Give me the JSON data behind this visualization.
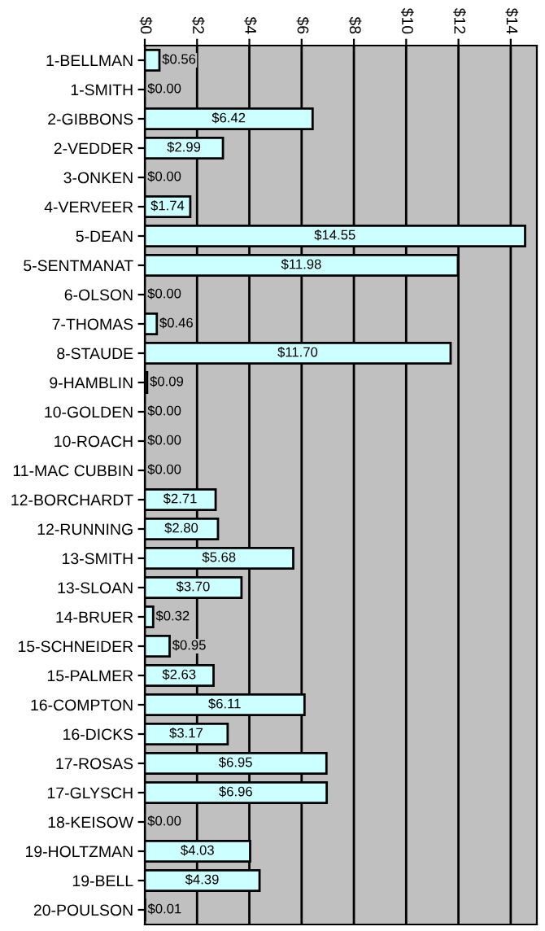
{
  "chart_data": {
    "type": "bar",
    "orientation": "horizontal",
    "categories": [
      "1-BELLMAN",
      "1-SMITH",
      "2-GIBBONS",
      "2-VEDDER",
      "3-ONKEN",
      "4-VERVEER",
      "5-DEAN",
      "5-SENTMANAT",
      "6-OLSON",
      "7-THOMAS",
      "8-STAUDE",
      "9-HAMBLIN",
      "10-GOLDEN",
      "10-ROACH",
      "11-MAC CUBBIN",
      "12-BORCHARDT",
      "12-RUNNING",
      "13-SMITH",
      "13-SLOAN",
      "14-BRUER",
      "15-SCHNEIDER",
      "15-PALMER",
      "16-COMPTON",
      "16-DICKS",
      "17-ROSAS",
      "17-GLYSCH",
      "18-KEISOW",
      "19-HOLTZMAN",
      "19-BELL",
      "20-POULSON"
    ],
    "values": [
      0.56,
      0.0,
      6.42,
      2.99,
      0.0,
      1.74,
      14.55,
      11.98,
      0.0,
      0.46,
      11.7,
      0.09,
      0.0,
      0.0,
      0.0,
      2.71,
      2.8,
      5.68,
      3.7,
      0.32,
      0.95,
      2.63,
      6.11,
      3.17,
      6.95,
      6.96,
      0.0,
      4.03,
      4.39,
      0.01
    ],
    "value_labels": [
      "$0.56",
      "$0.00",
      "$6.42",
      "$2.99",
      "$0.00",
      "$1.74",
      "$14.55",
      "$11.98",
      "$0.00",
      "$0.46",
      "$11.70",
      "$0.09",
      "$0.00",
      "$0.00",
      "$0.00",
      "$2.71",
      "$2.80",
      "$5.68",
      "$3.70",
      "$0.32",
      "$0.95",
      "$2.63",
      "$6.11",
      "$3.17",
      "$6.95",
      "$6.96",
      "$0.00",
      "$4.03",
      "$4.39",
      "$0.01"
    ],
    "color": "#ccffff",
    "xlim": [
      0,
      15
    ],
    "xticks": [
      {
        "value": 0,
        "label": "$0"
      },
      {
        "value": 2,
        "label": "$2"
      },
      {
        "value": 4,
        "label": "$4"
      },
      {
        "value": 6,
        "label": "$6"
      },
      {
        "value": 8,
        "label": "$8"
      },
      {
        "value": 10,
        "label": "$10"
      },
      {
        "value": 12,
        "label": "$12"
      },
      {
        "value": 14,
        "label": "$14"
      }
    ],
    "grid": "x"
  }
}
